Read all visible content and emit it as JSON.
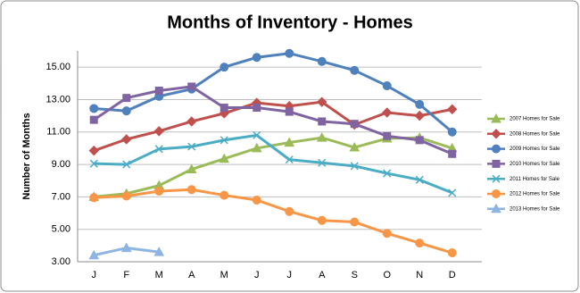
{
  "chart_data": {
    "type": "line",
    "title": "Months of Inventory - Homes",
    "y_label": "Number of Months",
    "categories": [
      "J",
      "F",
      "M",
      "A",
      "M",
      "J",
      "J",
      "A",
      "S",
      "O",
      "N",
      "D"
    ],
    "ylim": [
      3,
      16
    ],
    "yticks": [
      {
        "value": 3,
        "label": "3.00"
      },
      {
        "value": 5,
        "label": "5.00"
      },
      {
        "value": 7,
        "label": "7.00"
      },
      {
        "value": 9,
        "label": "9.00"
      },
      {
        "value": 11,
        "label": "11.00"
      },
      {
        "value": 13,
        "label": "13.00"
      },
      {
        "value": 15,
        "label": "15.00"
      }
    ],
    "grid": true,
    "legend": "right",
    "series": [
      {
        "name": "2007 Homes for Sale",
        "color": "#9bbb59",
        "marker": "triangle",
        "values": [
          7.0,
          7.2,
          7.7,
          8.7,
          9.35,
          10.0,
          10.35,
          10.65,
          10.05,
          10.6,
          10.65,
          10.0
        ]
      },
      {
        "name": "2008 Homes for Sale",
        "color": "#c0504d",
        "marker": "diamond",
        "values": [
          9.85,
          10.55,
          11.05,
          11.65,
          12.15,
          12.8,
          12.6,
          12.85,
          11.45,
          12.2,
          12.0,
          12.4
        ]
      },
      {
        "name": "2009 Homes for Sale",
        "color": "#4f81bd",
        "marker": "circle",
        "values": [
          12.45,
          12.3,
          13.2,
          13.65,
          15.0,
          15.6,
          15.85,
          15.35,
          14.8,
          13.85,
          12.7,
          11.0
        ]
      },
      {
        "name": "2010 Homes for Sale",
        "color": "#8064a2",
        "marker": "square",
        "values": [
          11.75,
          13.1,
          13.55,
          13.8,
          12.5,
          12.5,
          12.25,
          11.65,
          11.5,
          10.75,
          10.5,
          9.65
        ]
      },
      {
        "name": "2011 Homes for Sale",
        "color": "#4bacc6",
        "marker": "x",
        "values": [
          9.05,
          9.0,
          9.95,
          10.1,
          10.5,
          10.8,
          9.3,
          9.1,
          8.9,
          8.45,
          8.05,
          7.25
        ]
      },
      {
        "name": "2012 Homes for Sale",
        "color": "#f79646",
        "marker": "circle",
        "values": [
          6.95,
          7.05,
          7.35,
          7.45,
          7.1,
          6.8,
          6.1,
          5.55,
          5.45,
          4.75,
          4.15,
          3.55
        ]
      },
      {
        "name": "2013 Homes for Sale",
        "color": "#8eb4e3",
        "marker": "triangle",
        "values": [
          3.4,
          3.85,
          3.6,
          null,
          null,
          null,
          null,
          null,
          null,
          null,
          null,
          null
        ]
      }
    ]
  }
}
